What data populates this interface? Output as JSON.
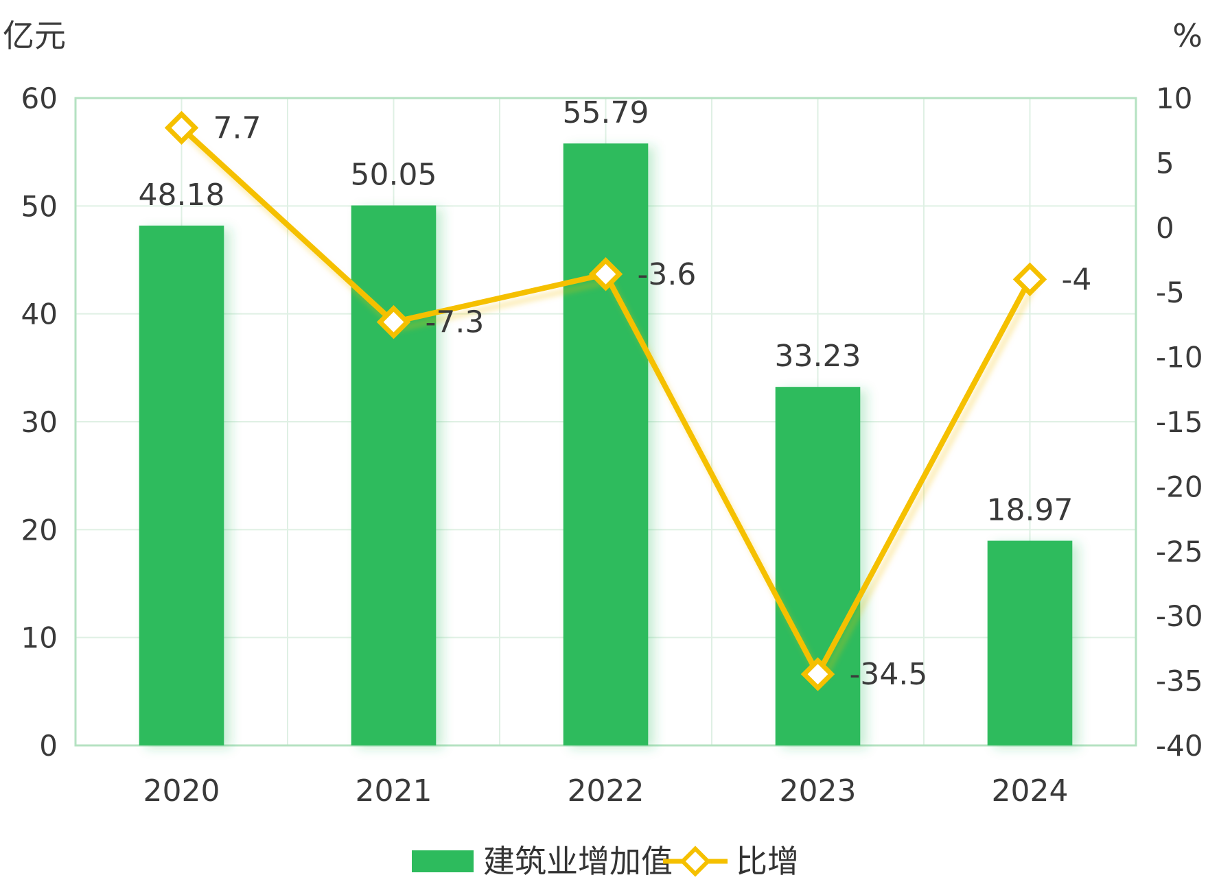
{
  "chart_data": {
    "type": "bar+line",
    "categories": [
      "2020",
      "2021",
      "2022",
      "2023",
      "2024"
    ],
    "series": [
      {
        "name": "建筑业增加值",
        "type": "bar",
        "axis": "left",
        "color": "#2dbb5d",
        "values": [
          48.18,
          50.05,
          55.79,
          33.23,
          18.97
        ],
        "labels": [
          "48.18",
          "50.05",
          "55.79",
          "33.23",
          "18.97"
        ]
      },
      {
        "name": "比增",
        "type": "line",
        "axis": "right",
        "color": "#f5c000",
        "values": [
          7.7,
          -7.3,
          -3.6,
          -34.5,
          -4
        ],
        "labels": [
          "7.7",
          "-7.3",
          "-3.6",
          "-34.5",
          "-4"
        ]
      }
    ],
    "y_left": {
      "unit": "亿元",
      "range": [
        0,
        60
      ],
      "ticks": [
        "0",
        "10",
        "20",
        "30",
        "40",
        "50",
        "60"
      ]
    },
    "y_right": {
      "unit": "%",
      "range": [
        -40,
        10
      ],
      "ticks": [
        "-40",
        "-35",
        "-30",
        "-25",
        "-20",
        "-15",
        "-10",
        "-5",
        "0",
        "5",
        "10"
      ]
    },
    "grid": true,
    "legend": "bottom-center",
    "colors": {
      "grid": "#dff0e4",
      "frame": "#b5e2c2"
    }
  }
}
